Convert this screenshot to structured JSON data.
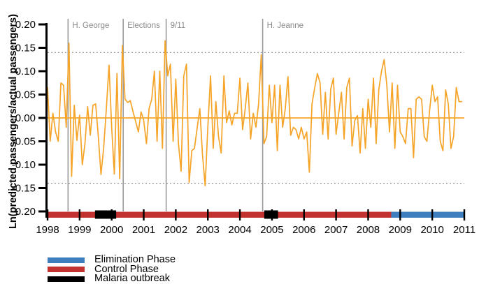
{
  "chart_data": {
    "type": "line",
    "title": "",
    "ylabel": "Ln(predicted passengers/actual passengers)",
    "xlim": [
      1998,
      2011
    ],
    "ylim": [
      -0.2,
      0.2
    ],
    "grid": false,
    "x_tick_labels": [
      "1998",
      "1999",
      "2000",
      "2001",
      "2002",
      "2003",
      "2004",
      "2005",
      "2006",
      "2007",
      "2008",
      "2009",
      "2010",
      "2011"
    ],
    "y_ticks": [
      0.2,
      0.15,
      0.1,
      0.05,
      0.0,
      -0.05,
      -0.1,
      -0.15,
      -0.2
    ],
    "y_tick_labels": [
      "0.20",
      "0.15",
      "0.10",
      "0.05",
      "0.00",
      "-0.05",
      "-0.10",
      "-0.15",
      "-0.20"
    ],
    "series": [
      {
        "name": "ln-predicted-over-actual-passengers",
        "color": "#F5A428",
        "x_start_year": 1998,
        "x_step_years": 0.0833333,
        "values": [
          0.065,
          -0.05,
          0.01,
          -0.03,
          -0.05,
          0.075,
          0.07,
          -0.02,
          0.16,
          -0.125,
          0.027,
          -0.048,
          0.006,
          -0.1,
          -0.055,
          0.024,
          -0.037,
          0.027,
          0.03,
          -0.04,
          -0.121,
          -0.065,
          0.02,
          0.113,
          -0.02,
          -0.12,
          0.095,
          -0.13,
          0.155,
          0.04,
          0.033,
          0.037,
          0.013,
          -0.008,
          -0.03,
          0.013,
          -0.005,
          -0.055,
          0.02,
          0.04,
          0.1,
          -0.05,
          0.1,
          -0.065,
          0.165,
          0.09,
          0.115,
          -0.05,
          0.083,
          -0.055,
          -0.114,
          0.09,
          0.115,
          -0.138,
          -0.07,
          -0.065,
          -0.022,
          0.02,
          -0.08,
          -0.145,
          -0.02,
          0.09,
          -0.065,
          0.035,
          -0.04,
          -0.075,
          0.09,
          -0.01,
          0.015,
          -0.015,
          0.01,
          0.01,
          0.085,
          -0.025,
          0.02,
          0.075,
          -0.045,
          0.01,
          -0.02,
          0.03,
          0.135,
          -0.055,
          -0.04,
          0.07,
          -0.01,
          0.07,
          -0.07,
          0.07,
          -0.02,
          0.02,
          0.088,
          -0.037,
          -0.02,
          -0.025,
          -0.045,
          -0.02,
          -0.045,
          -0.03,
          -0.116,
          0.03,
          0.065,
          0.095,
          0.075,
          -0.035,
          0.055,
          -0.045,
          0.062,
          0.085,
          -0.035,
          0.01,
          0.055,
          -0.045,
          0.065,
          0.085,
          -0.06,
          -0.005,
          0.005,
          -0.075,
          0.02,
          -0.065,
          0.04,
          -0.02,
          0.085,
          -0.055,
          0.06,
          0.1,
          0.125,
          0.07,
          -0.03,
          0.075,
          -0.065,
          0.07,
          -0.03,
          -0.04,
          -0.055,
          0.02,
          0.02,
          -0.085,
          0.04,
          0.045,
          0.04,
          -0.04,
          -0.05,
          0.015,
          0.07,
          0.035,
          0.045,
          -0.05,
          -0.07,
          0.06,
          0.03,
          -0.065,
          -0.04,
          0.065,
          0.035,
          0.035
        ]
      }
    ],
    "zero_line": {
      "value": 0.0,
      "color": "#F5A428"
    },
    "reference_lines": [
      {
        "value": 0.14,
        "style": "dotted",
        "color": "#767676"
      },
      {
        "value": -0.14,
        "style": "dotted",
        "color": "#767676"
      }
    ],
    "events": [
      {
        "label": "H. George",
        "year": 1998.64
      },
      {
        "label": "Elections",
        "year": 2000.36
      },
      {
        "label": "9/11",
        "year": 2001.7
      },
      {
        "label": "H. Jeanne",
        "year": 2004.71
      }
    ],
    "event_line_color": "#9a9a9a",
    "event_label_color": "#8a8a8a",
    "phases": [
      {
        "name": "Control Phase",
        "color": "#C23230",
        "start": 1998.0,
        "end": 2008.72
      },
      {
        "name": "Elimination Phase",
        "color": "#3E7EBE",
        "start": 2008.72,
        "end": 2011.0
      },
      {
        "name": "Malaria outbreak",
        "color": "#000000",
        "start": 1999.48,
        "end": 2000.14
      },
      {
        "name": "Malaria outbreak",
        "color": "#000000",
        "start": 2004.76,
        "end": 2005.19
      }
    ],
    "legend": [
      {
        "label": "Elimination Phase",
        "color": "#3E7EBE"
      },
      {
        "label": "Control Phase",
        "color": "#C23230"
      },
      {
        "label": "Malaria outbreak",
        "color": "#000000"
      }
    ],
    "legend_position": "bottom-left",
    "axis_color": "#000000"
  }
}
